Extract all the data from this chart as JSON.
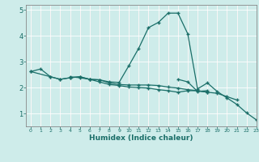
{
  "title": "",
  "xlabel": "Humidex (Indice chaleur)",
  "background_color": "#ceecea",
  "line_color": "#1a6e68",
  "grid_color": "#ffffff",
  "grid_color2": "#f5c0c0",
  "xlim": [
    -0.5,
    23
  ],
  "ylim": [
    0.5,
    5.2
  ],
  "xticks": [
    0,
    1,
    2,
    3,
    4,
    5,
    6,
    7,
    8,
    9,
    10,
    11,
    12,
    13,
    14,
    15,
    16,
    17,
    18,
    19,
    20,
    21,
    22,
    23
  ],
  "yticks": [
    1,
    2,
    3,
    4,
    5
  ],
  "series": [
    [
      2.62,
      2.72,
      2.42,
      2.32,
      2.38,
      2.42,
      2.32,
      2.3,
      2.22,
      2.2,
      2.85,
      3.52,
      4.32,
      4.52,
      4.88,
      4.88,
      4.08,
      1.95,
      2.18,
      1.85,
      1.6,
      1.35,
      1.02,
      0.75
    ],
    [
      2.62,
      null,
      2.42,
      2.32,
      2.38,
      2.42,
      2.32,
      2.3,
      2.18,
      2.12,
      2.1,
      2.1,
      2.1,
      2.08,
      2.02,
      1.98,
      1.92,
      1.88,
      1.82,
      1.78,
      1.65,
      1.52,
      null,
      null
    ],
    [
      null,
      null,
      null,
      null,
      2.42,
      2.38,
      2.32,
      2.22,
      2.12,
      2.08,
      2.02,
      2.0,
      1.98,
      1.92,
      1.88,
      1.82,
      1.88,
      1.88,
      1.82,
      null,
      null,
      null,
      null,
      null
    ],
    [
      null,
      null,
      null,
      null,
      null,
      null,
      null,
      null,
      null,
      null,
      null,
      null,
      null,
      null,
      null,
      2.32,
      2.22,
      1.85,
      1.88,
      null,
      null,
      null,
      null,
      null
    ]
  ]
}
